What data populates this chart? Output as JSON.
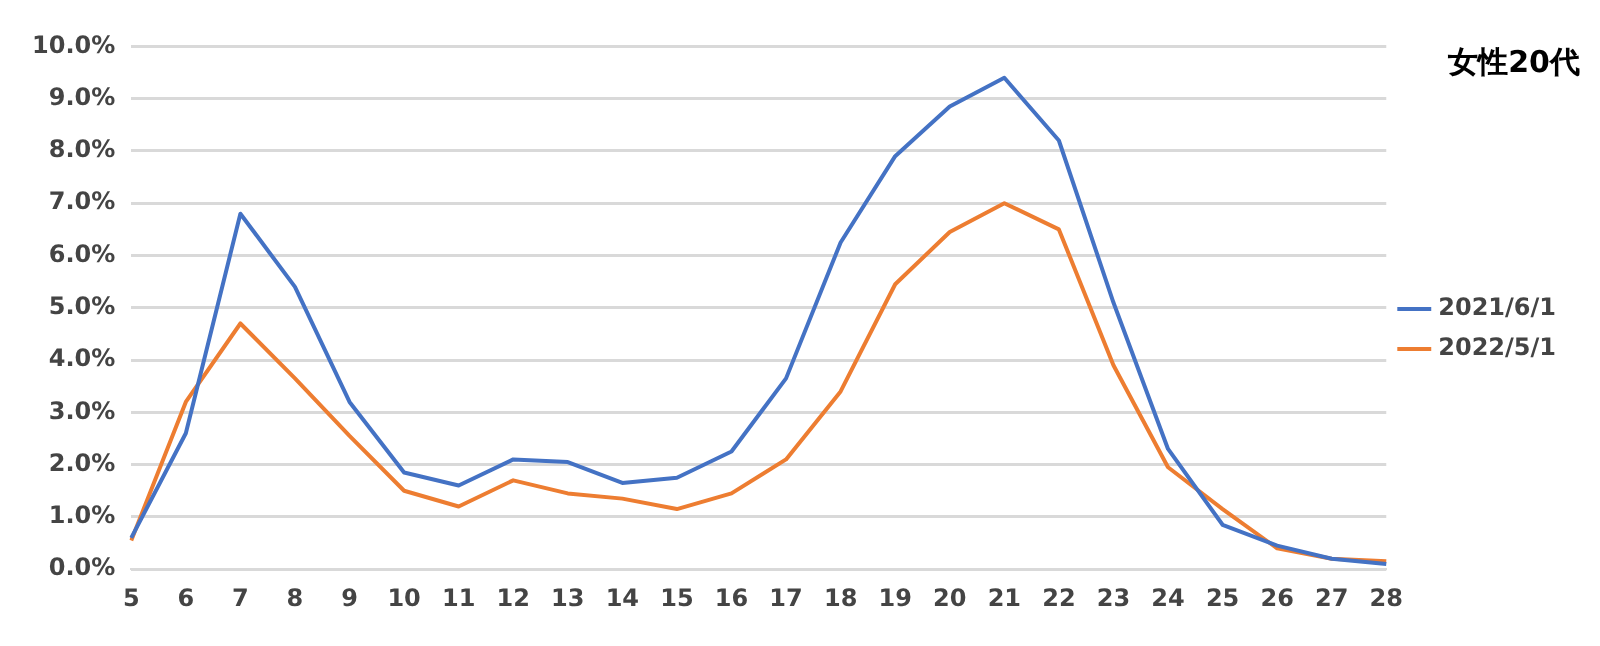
{
  "chart_data": {
    "type": "line",
    "title": "女性20代",
    "categories": [
      "5",
      "6",
      "7",
      "8",
      "9",
      "10",
      "11",
      "12",
      "13",
      "14",
      "15",
      "16",
      "17",
      "18",
      "19",
      "20",
      "21",
      "22",
      "23",
      "24",
      "25",
      "26",
      "27",
      "28"
    ],
    "series": [
      {
        "name": "2021/6/1",
        "color": "#4472c4",
        "values": [
          0.6,
          2.6,
          6.8,
          5.4,
          3.2,
          1.85,
          1.6,
          2.1,
          2.05,
          1.65,
          1.75,
          2.25,
          3.65,
          6.25,
          7.9,
          8.85,
          9.4,
          8.2,
          5.1,
          2.3,
          0.85,
          0.45,
          0.2,
          0.1
        ]
      },
      {
        "name": "2022/5/1",
        "color": "#ed7d31",
        "values": [
          0.55,
          3.2,
          4.7,
          3.65,
          2.55,
          1.5,
          1.2,
          1.7,
          1.45,
          1.35,
          1.15,
          1.45,
          2.1,
          3.4,
          5.45,
          6.45,
          7.0,
          6.5,
          3.9,
          1.95,
          1.15,
          0.4,
          0.2,
          0.15
        ]
      }
    ],
    "ylim": [
      0,
      10
    ],
    "yticks": [
      {
        "value": 0,
        "label": "0.0%"
      },
      {
        "value": 1,
        "label": "1.0%"
      },
      {
        "value": 2,
        "label": "2.0%"
      },
      {
        "value": 3,
        "label": "3.0%"
      },
      {
        "value": 4,
        "label": "4.0%"
      },
      {
        "value": 5,
        "label": "5.0%"
      },
      {
        "value": 6,
        "label": "6.0%"
      },
      {
        "value": 7,
        "label": "7.0%"
      },
      {
        "value": 8,
        "label": "8.0%"
      },
      {
        "value": 9,
        "label": "9.0%"
      },
      {
        "value": 10,
        "label": "10.0%"
      }
    ],
    "grid": "y",
    "legend": "right",
    "marker": "none",
    "line_style": "solid"
  }
}
